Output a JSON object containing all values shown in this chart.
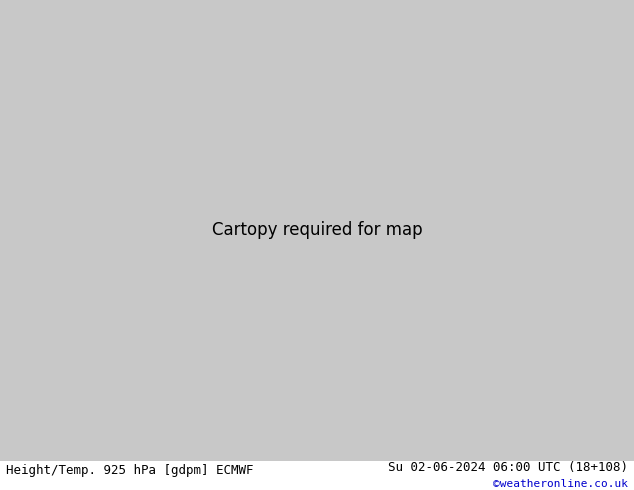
{
  "title_left": "Height/Temp. 925 hPa [gdpm] ECMWF",
  "title_right": "Su 02-06-2024 06:00 UTC (18+108)",
  "credit": "©weatheronline.co.uk",
  "background_color": "#d0d0d0",
  "land_color": "#90ee90",
  "ocean_color": "#d3d3d3",
  "height_contour_color": "#000000",
  "temp_warm_color": "#ff4500",
  "temp_cold_color": "#00bfff",
  "temp_orange_color": "#ffa500",
  "temp_green_color": "#7cfc00",
  "temp_magenta_color": "#cc00cc",
  "title_fontsize": 9,
  "credit_fontsize": 8,
  "credit_color": "#0000cc",
  "fig_width": 6.34,
  "fig_height": 4.9,
  "dpi": 100,
  "extent": [
    -90,
    -20,
    -60,
    15
  ],
  "map_extent_lon_min": -90,
  "map_extent_lon_max": -20,
  "map_extent_lat_min": -60,
  "map_extent_lat_max": 15
}
